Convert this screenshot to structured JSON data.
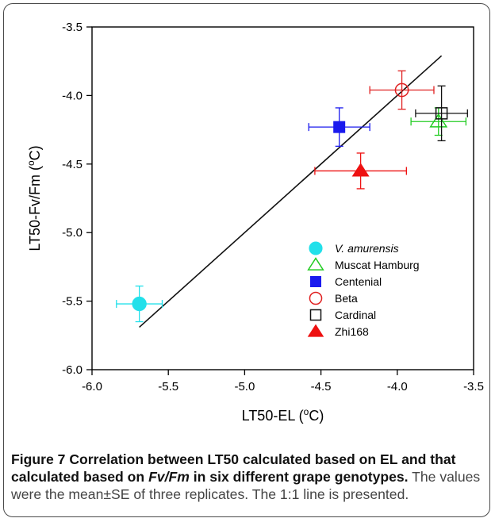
{
  "chart_data": {
    "type": "scatter",
    "xlabel": "LT50-EL (",
    "xlabel_sup": "o",
    "xlabel_end": "C)",
    "ylabel": "LT50-Fv/Fm (",
    "ylabel_sup": "o",
    "ylabel_end": "C)",
    "xlim": [
      -6.0,
      -3.5
    ],
    "ylim": [
      -6.0,
      -3.5
    ],
    "x_ticks": [
      "-6.0",
      "-5.5",
      "-5.0",
      "-4.5",
      "-4.0",
      "-3.5"
    ],
    "x_tick_values": [
      -6.0,
      -5.5,
      -5.0,
      -4.5,
      -4.0,
      -3.5
    ],
    "y_ticks": [
      "-3.5",
      "-4.0",
      "-4.5",
      "-5.0",
      "-5.5",
      "-6.0"
    ],
    "y_tick_values": [
      -3.5,
      -4.0,
      -4.5,
      -5.0,
      -5.5,
      -6.0
    ],
    "grid": false,
    "legend_position": "bottom-right",
    "series": [
      {
        "name": "V. amurensis",
        "italic": true,
        "marker": "circle-filled",
        "color": "#22e0ea",
        "x": -5.69,
        "y": -5.52,
        "x_err": 0.15,
        "y_err": 0.13
      },
      {
        "name": "Muscat Hamburg",
        "italic": false,
        "marker": "triangle-open",
        "color": "#22cc22",
        "x": -3.73,
        "y": -4.19,
        "x_err": 0.18,
        "y_err": 0.1
      },
      {
        "name": "Centenial",
        "italic": false,
        "marker": "square-filled",
        "color": "#1a1aee",
        "x": -4.38,
        "y": -4.23,
        "x_err": 0.2,
        "y_err": 0.14
      },
      {
        "name": "Beta",
        "italic": false,
        "marker": "circle-open",
        "color": "#e02020",
        "x": -3.97,
        "y": -3.96,
        "x_err": 0.21,
        "y_err": 0.14
      },
      {
        "name": "Cardinal",
        "italic": false,
        "marker": "square-open",
        "color": "#111111",
        "x": -3.71,
        "y": -4.13,
        "x_err": 0.17,
        "y_err": 0.2
      },
      {
        "name": "Zhi168",
        "italic": false,
        "marker": "triangle-filled",
        "color": "#ee1111",
        "x": -4.24,
        "y": -4.55,
        "x_err": 0.3,
        "y_err": 0.13
      }
    ],
    "line_1to1": {
      "x": [
        -5.69,
        -3.71
      ],
      "y": [
        -5.69,
        -3.71
      ],
      "color": "#111111"
    }
  },
  "caption": {
    "bold_prefix": "Figure 7 Correlation between LT50 calculated based on EL and that calculated based on ",
    "bold_italic": "Fv/Fm",
    "bold_suffix": " in six different grape genotypes.",
    "body": " The values were the mean±SE of three replicates. The 1:1 line is presented."
  }
}
